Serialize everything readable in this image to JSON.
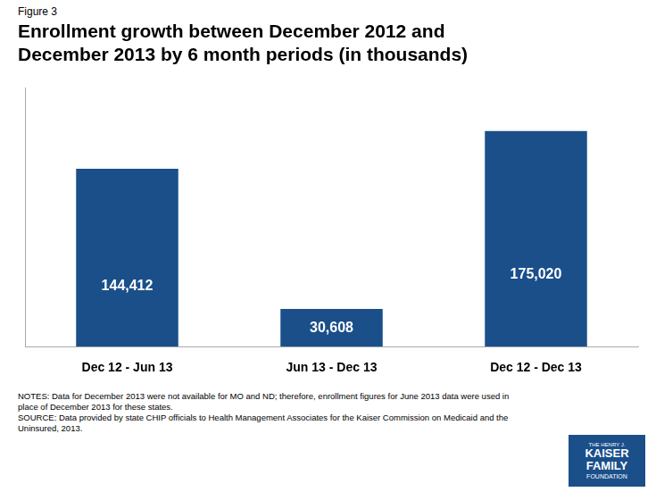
{
  "chart_data": {
    "type": "bar",
    "title": [
      "Enrollment growth between December 2012 and",
      "December 2013 by 6 month periods (in thousands)"
    ],
    "categories": [
      "Dec 12 - Jun 13",
      "Jun 13 - Dec 13",
      "Dec 12 - Dec 13"
    ],
    "values": [
      144412,
      30608,
      175020
    ],
    "value_labels": [
      "144,412",
      "30,608",
      "175,020"
    ],
    "data_labels": true,
    "color": "#1a4f8a",
    "ylim": [
      0,
      210000
    ],
    "grid": false,
    "tick_labels": "x",
    "annotations": [
      "Figure 3",
      "NOTES: Data for December 2013 were not available for MO and ND; therefore, enrollment figures for June 2013 data were used in",
      "place of December 2013 for these states.",
      "SOURCE: Data provided by state CHIP officials to Health Management Associates for the Kaiser Commission on Medicaid and the",
      "Uninsured, 2013.",
      "THE HENRY J.",
      "KAISER",
      "FAMILY",
      "FOUNDATION"
    ]
  }
}
